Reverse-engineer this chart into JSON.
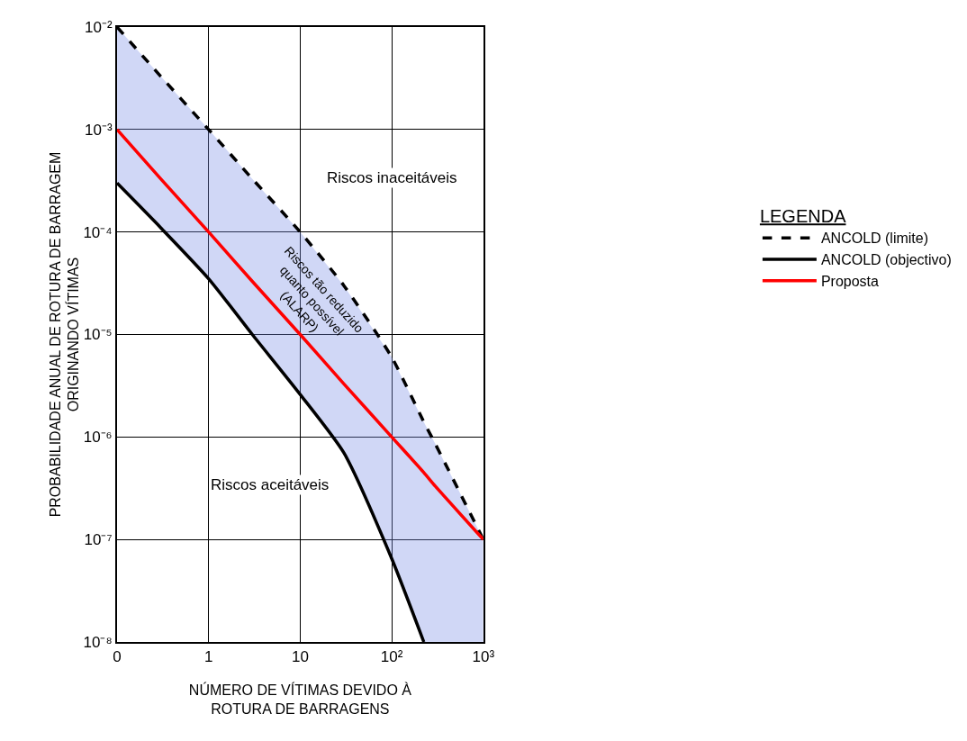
{
  "chart_data": {
    "type": "line",
    "xlabel": "NÚMERO DE VÍTIMAS DEVIDO À\nROTURA DE BARRAGENS",
    "ylabel": "PROBABILIDADE ANUAL DE ROTURA DE BARRAGEM\nORIGINANDO VÍTIMAS",
    "legend_title": "LEGENDA",
    "log": "xy",
    "grid": true,
    "legend": "right",
    "x": [
      0.1,
      0.3,
      1,
      3,
      10,
      30,
      100,
      224,
      300,
      1000
    ],
    "series": [
      {
        "name": "ANCOLD (limite)",
        "color": "#000000",
        "line_style": "dashed",
        "values": [
          0.01,
          0.0033,
          0.001,
          0.00033,
          0.0001,
          3e-05,
          6e-06,
          1.4e-06,
          8.5e-07,
          1e-07
        ]
      },
      {
        "name": "ANCOLD (objectivo)",
        "color": "#000000",
        "line_style": "solid",
        "values": [
          0.0003,
          0.00011,
          3.5e-05,
          1e-05,
          2.6e-06,
          7e-07,
          6.5e-08,
          1e-08,
          null,
          null
        ]
      },
      {
        "name": "Proposta",
        "color": "#ff0000",
        "line_style": "solid",
        "values": [
          0.001,
          0.00033,
          0.0001,
          3.3e-05,
          1e-05,
          3.3e-06,
          1e-06,
          4.5e-07,
          3.3e-07,
          1e-07
        ],
        "lower": [
          0.0003,
          0.00011,
          3.5e-05,
          1e-05,
          2.6e-06,
          7e-07,
          6.5e-08,
          1e-08,
          1e-08,
          1e-08
        ],
        "upper": [
          0.01,
          0.0033,
          0.001,
          0.00033,
          0.0001,
          3e-05,
          6e-06,
          1.4e-06,
          8.5e-07,
          1e-07
        ]
      }
    ],
    "xlim": [
      0.1,
      1000
    ],
    "xticks": [
      {
        "value": 0.1,
        "label": "0"
      },
      1,
      10,
      {
        "value": 100,
        "label": "10²"
      },
      {
        "value": 1000,
        "label": "10³"
      }
    ],
    "ylim": [
      1e-08,
      0.01
    ],
    "yticks": [
      {
        "value": 1e-08,
        "label": "10⁻⁸"
      },
      {
        "value": 1e-07,
        "label": "10⁻⁷"
      },
      {
        "value": 1e-06,
        "label": "10⁻⁶"
      },
      {
        "value": 1e-05,
        "label": "10⁻⁵"
      },
      {
        "value": 0.0001,
        "label": "10⁻⁴"
      },
      {
        "value": 0.001,
        "label": "10⁻³"
      },
      {
        "value": 0.01,
        "label": "10⁻²"
      }
    ],
    "annotations": [
      "Riscos inaceitáveis",
      "Riscos aceitáveis",
      "Riscos tão reduzido\nquanto possível\n(ALARP)"
    ]
  }
}
